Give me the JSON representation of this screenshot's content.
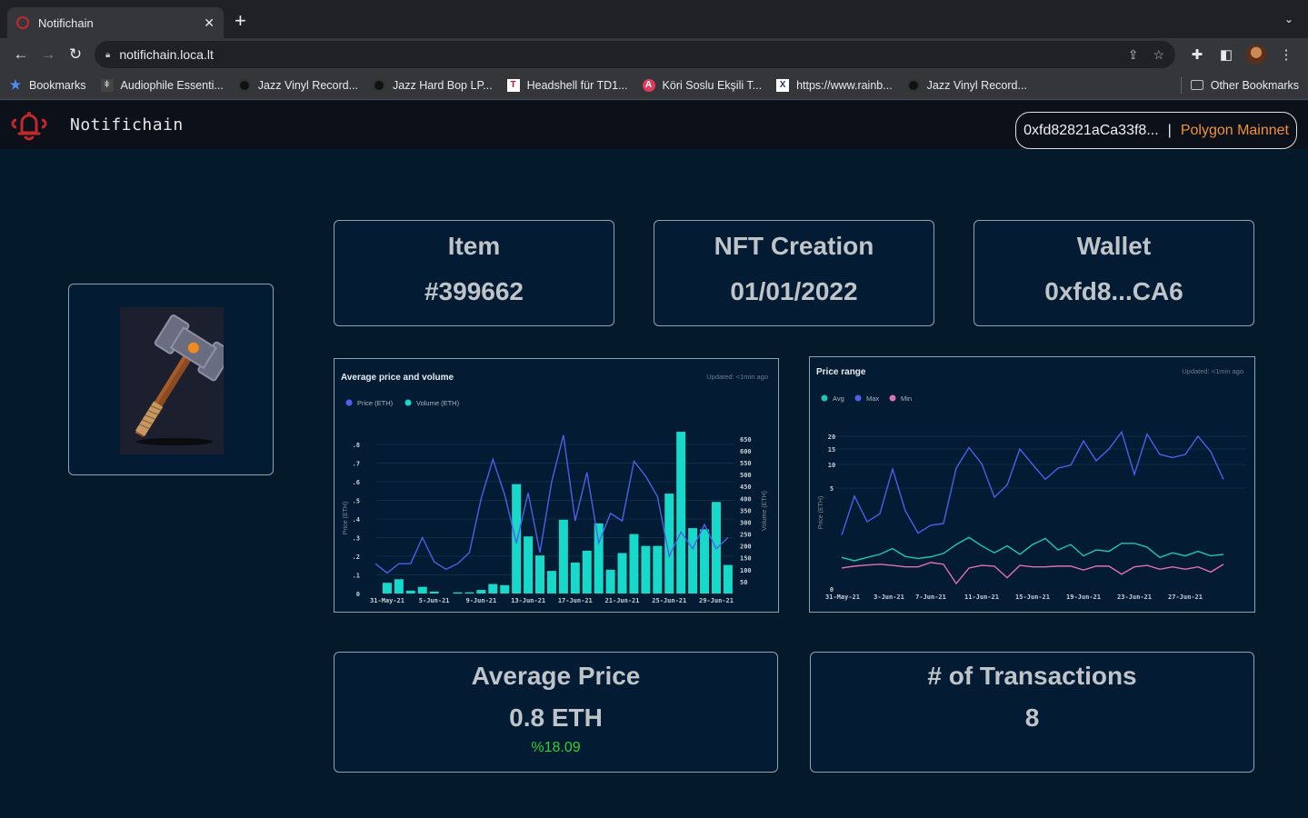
{
  "browser": {
    "tab_title": "Notifichain",
    "url": "notifichain.loca.lt",
    "bookmarks": [
      {
        "label": "Bookmarks",
        "icon": "star-icon"
      },
      {
        "label": "Audiophile Essenti...",
        "icon": "audiophile-icon"
      },
      {
        "label": "Jazz Vinyl Record...",
        "icon": "vinyl-icon"
      },
      {
        "label": "Jazz Hard Bop LP...",
        "icon": "vinyl-icon"
      },
      {
        "label": "Headshell für TD1...",
        "icon": "t-logo-icon"
      },
      {
        "label": "Köri Soslu Ekşili T...",
        "icon": "a-logo-icon"
      },
      {
        "label": "https://www.rainb...",
        "icon": "x-logo-icon"
      },
      {
        "label": "Jazz Vinyl Record...",
        "icon": "vinyl-icon"
      }
    ],
    "other_bookmarks": "Other Bookmarks"
  },
  "app": {
    "brand": "Notifichain",
    "wallet_address": "0xfd82821aCa33f8...",
    "separator": "|",
    "network": "Polygon Mainnet"
  },
  "stats": [
    {
      "title": "Item",
      "value": "#399662"
    },
    {
      "title": "NFT Creation",
      "value": "01/01/2022"
    },
    {
      "title": "Wallet",
      "value": "0xfd8...CA6"
    }
  ],
  "summary": {
    "avg_price_title": "Average Price",
    "avg_price_value": "0.8 ETH",
    "avg_price_change": "%18.09",
    "tx_title": "# of Transactions",
    "tx_value": "8"
  },
  "colors": {
    "price": "#4f5fe8",
    "volume": "#16d9c9",
    "avg": "#1ec7b0",
    "max": "#4f5fe8",
    "min": "#e070b0",
    "network": "#f0913a",
    "positive": "#2ed12e",
    "brand_icon": "#c0282d"
  },
  "chart_data": [
    {
      "type": "bar",
      "title": "Average price and volume",
      "updated": "Updated: <1min ago",
      "legend": [
        "Price (ETH)",
        "Volume (ETH)"
      ],
      "legend_position": "top-left",
      "ylabel": "Price (ETH)",
      "y2label": "Volume (ETH)",
      "ylim": [
        0,
        0.85
      ],
      "y2lim": [
        0,
        680
      ],
      "yticks": [
        "0",
        ".1",
        ".2",
        ".3",
        ".4",
        ".5",
        ".6",
        ".7",
        ".8"
      ],
      "y2ticks": [
        "50",
        "100",
        "150",
        "200",
        "250",
        "300",
        "350",
        "400",
        "450",
        "500",
        "550",
        "600",
        "650"
      ],
      "xtick_labels": [
        "31-May-21",
        "5-Jun-21",
        "9-Jun-21",
        "13-Jun-21",
        "17-Jun-21",
        "21-Jun-21",
        "25-Jun-21",
        "29-Jun-21"
      ],
      "grid": true,
      "series": [
        {
          "name": "Price (ETH)",
          "type": "line",
          "values": [
            0.16,
            0.11,
            0.16,
            0.16,
            0.3,
            0.17,
            0.13,
            0.16,
            0.22,
            0.51,
            0.72,
            0.53,
            0.27,
            0.54,
            0.22,
            0.6,
            0.85,
            0.39,
            0.65,
            0.27,
            0.43,
            0.39,
            0.71,
            0.63,
            0.52,
            0.2,
            0.33,
            0.24,
            0.37,
            0.24,
            0.3
          ]
        },
        {
          "name": "Volume (ETH)",
          "type": "bar",
          "values": [
            0,
            45,
            60,
            12,
            28,
            8,
            0,
            5,
            5,
            15,
            40,
            35,
            460,
            240,
            160,
            95,
            310,
            130,
            180,
            295,
            100,
            170,
            250,
            200,
            200,
            420,
            680,
            275,
            270,
            385,
            120
          ]
        }
      ]
    },
    {
      "type": "line",
      "title": "Price range",
      "updated": "Updated: <1min ago",
      "legend": [
        "Avg",
        "Max",
        "Min"
      ],
      "legend_position": "top-left",
      "ylabel": "Price (ETH)",
      "yticks": [
        "0",
        "5",
        "10",
        "15",
        "20"
      ],
      "xtick_labels": [
        "31-May-21",
        "3-Jun-21",
        "7-Jun-21",
        "11-Jun-21",
        "15-Jun-21",
        "19-Jun-21",
        "23-Jun-21",
        "27-Jun-21"
      ],
      "grid": true,
      "series": [
        {
          "name": "Max",
          "values": [
            1.6,
            4.2,
            2.3,
            2.8,
            8.8,
            3.0,
            1.7,
            2.1,
            2.2,
            9.0,
            15.5,
            10.2,
            4.1,
            5.5,
            15.0,
            10.0,
            6.5,
            9.0,
            9.8,
            18.0,
            11.0,
            15.0,
            22.0,
            7.5,
            21.0,
            13.0,
            12.0,
            13.0,
            20.0,
            14.0,
            6.5
          ]
        },
        {
          "name": "Avg",
          "values": [
            0.75,
            0.65,
            0.75,
            0.85,
            1.05,
            0.78,
            0.72,
            0.77,
            0.88,
            1.2,
            1.5,
            1.15,
            0.9,
            1.15,
            0.85,
            1.2,
            1.45,
            1.0,
            1.2,
            0.8,
            1.0,
            0.95,
            1.25,
            1.25,
            1.1,
            0.75,
            0.9,
            0.8,
            0.95,
            0.8,
            0.85
          ]
        },
        {
          "name": "Min",
          "values": [
            0.45,
            0.5,
            0.53,
            0.55,
            0.52,
            0.48,
            0.48,
            0.6,
            0.55,
            0.1,
            0.45,
            0.52,
            0.5,
            0.22,
            0.52,
            0.48,
            0.48,
            0.5,
            0.5,
            0.4,
            0.5,
            0.5,
            0.3,
            0.48,
            0.52,
            0.42,
            0.48,
            0.42,
            0.48,
            0.35,
            0.55
          ]
        }
      ]
    }
  ]
}
